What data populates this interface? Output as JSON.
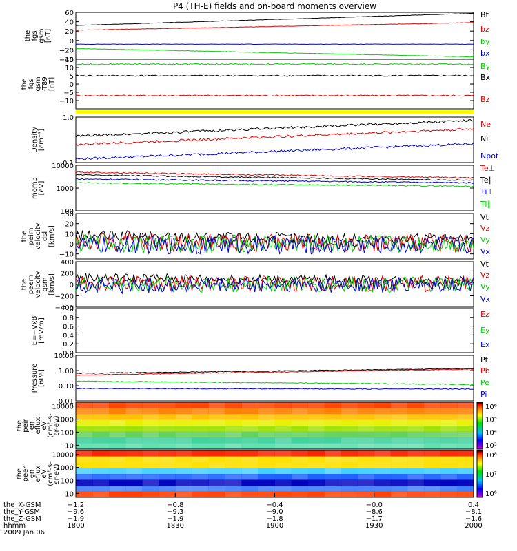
{
  "title": "P4 (TH-E) fields and on-board moments overview",
  "colors": {
    "black": "#000000",
    "red": "#e00000",
    "green": "#00d000",
    "blue": "#0000d0",
    "yellow": "#ffff00"
  },
  "chart_data": {
    "type": "line",
    "panels": [
      {
        "ylabel": [
          "the",
          "fgs",
          "gsm",
          "[nT]"
        ],
        "ylim": [
          -40,
          60
        ],
        "log": false,
        "ticks": [
          "60",
          "40",
          "20",
          "0",
          "−20",
          "−40"
        ],
        "tickvals": [
          60,
          40,
          20,
          0,
          -20,
          -40
        ],
        "series": [
          {
            "name": "Bt",
            "color": "black",
            "start": 32,
            "end": 58
          },
          {
            "name": "bz",
            "color": "red",
            "start": 22,
            "end": 38
          },
          {
            "name": "by",
            "color": "green",
            "start": -17,
            "end": -35
          },
          {
            "name": "bx",
            "color": "blue",
            "start": -8,
            "end": -8
          }
        ]
      },
      {
        "ylabel": [
          "the",
          "fgs",
          "gsm",
          "-T89"
        ],
        "ylabel2": "[nT]",
        "ylim": [
          -15,
          15
        ],
        "log": false,
        "ticks": [
          "15",
          "10",
          "5",
          "0",
          "−5",
          "−10"
        ],
        "tickvals": [
          15,
          10,
          5,
          0,
          -5,
          -10
        ],
        "series": [
          {
            "name": "By",
            "color": "green",
            "start": 12,
            "end": 12
          },
          {
            "name": "Bx",
            "color": "black",
            "start": 5,
            "end": 5
          },
          {
            "name": "Bz",
            "color": "red",
            "start": -7,
            "end": -7
          }
        ]
      },
      {
        "ylabel": [
          "Density",
          "[cm⁻³]"
        ],
        "ylim": [
          0.1,
          1.0
        ],
        "log": true,
        "ticks": [
          "1.0",
          "0.1"
        ],
        "tickvals": [
          1.0,
          0.1
        ],
        "series": [
          {
            "name": "Ne",
            "color": "red",
            "start": 0.25,
            "end": 0.55
          },
          {
            "name": "Ni",
            "color": "black",
            "start": 0.38,
            "end": 0.85
          },
          {
            "name": "Npot",
            "color": "blue",
            "start": 0.12,
            "end": 0.26
          }
        ]
      },
      {
        "ylabel": [
          "mom3",
          "[eV]"
        ],
        "ylim": [
          100,
          10000
        ],
        "log": true,
        "ticks": [
          "10000",
          "1000",
          "100"
        ],
        "tickvals": [
          10000,
          1000,
          100
        ],
        "series": [
          {
            "name": "Te⊥",
            "color": "red",
            "start": 5000,
            "end": 2800
          },
          {
            "name": "Te∥",
            "color": "black",
            "start": 3800,
            "end": 2200
          },
          {
            "name": "Ti⊥",
            "color": "blue",
            "start": 2500,
            "end": 1700
          },
          {
            "name": "Ti∥",
            "color": "green",
            "start": 1700,
            "end": 1200
          }
        ]
      },
      {
        "ylabel": [
          "the",
          "peim",
          "velocity",
          "dsl",
          "[km/s]"
        ],
        "ylim": [
          -15,
          30
        ],
        "log": false,
        "ticks": [
          "30",
          "20",
          "10",
          "0",
          "−10"
        ],
        "tickvals": [
          30,
          20,
          10,
          0,
          -10
        ],
        "series": [
          {
            "name": "Vt",
            "color": "black",
            "start": 8,
            "end": 4
          },
          {
            "name": "Vz",
            "color": "red",
            "start": 2,
            "end": 1
          },
          {
            "name": "Vy",
            "color": "green",
            "start": 0,
            "end": 0
          },
          {
            "name": "Vx",
            "color": "blue",
            "start": -1,
            "end": -1
          }
        ]
      },
      {
        "ylabel": [
          "the",
          "peem",
          "velocity",
          "gsm",
          "[km/s]"
        ],
        "ylim": [
          -400,
          400
        ],
        "log": false,
        "ticks": [
          "400",
          "200",
          "0",
          "−200",
          "−400"
        ],
        "tickvals": [
          400,
          200,
          0,
          -200,
          -400
        ],
        "series": [
          {
            "name": "Vt",
            "color": "black",
            "start": 120,
            "end": 60
          },
          {
            "name": "Vz",
            "color": "red",
            "start": 20,
            "end": 10
          },
          {
            "name": "Vy",
            "color": "green",
            "start": 0,
            "end": 0
          },
          {
            "name": "Vx",
            "color": "blue",
            "start": -20,
            "end": -10
          }
        ]
      },
      {
        "ylabel": [
          "E=−VxB",
          "[mV/m]"
        ],
        "ylim": [
          0,
          1.0
        ],
        "log": false,
        "ticks": [
          "1.0",
          "0.8",
          "0.6",
          "0.4",
          "0.2",
          "0.0"
        ],
        "tickvals": [
          1.0,
          0.8,
          0.6,
          0.4,
          0.2,
          0.0
        ],
        "series": [
          {
            "name": "Ez",
            "color": "red"
          },
          {
            "name": "Ey",
            "color": "green"
          },
          {
            "name": "Ex",
            "color": "blue"
          }
        ]
      },
      {
        "ylabel": [
          "Pressure",
          "[nPa]"
        ],
        "ylim": [
          0.01,
          10
        ],
        "log": true,
        "ticks": [
          "10.00",
          "1.00",
          "0.10",
          "0.01"
        ],
        "tickvals": [
          10,
          1,
          0.1,
          0.01
        ],
        "series": [
          {
            "name": "Pt",
            "color": "black",
            "start": 0.65,
            "end": 1.35
          },
          {
            "name": "Pb",
            "color": "red",
            "start": 0.5,
            "end": 1.25
          },
          {
            "name": "Pe",
            "color": "green",
            "start": 0.2,
            "end": 0.12
          },
          {
            "name": "Pi",
            "color": "blue",
            "start": 0.065,
            "end": 0.06
          }
        ]
      }
    ],
    "spectrograms": [
      {
        "ylabel": [
          "the",
          "peir",
          "en",
          "eflux",
          "eV",
          "(cm²-s-",
          "sr-eV)"
        ],
        "ylim": [
          5,
          20000
        ],
        "log": true,
        "ticks": [
          "10000",
          "1000",
          "100",
          "10"
        ],
        "tickvals": [
          10000,
          1000,
          100,
          10
        ],
        "colorbar": [
          "10⁶",
          "10⁵",
          "10⁴",
          "10³"
        ],
        "colorbar_vals": [
          1000000,
          100000,
          10000,
          1000
        ]
      },
      {
        "ylabel": [
          "the",
          "peer",
          "en",
          "eflux",
          "eV",
          "(cm²-s-",
          "sr-eV)"
        ],
        "ylim": [
          5,
          20000
        ],
        "log": true,
        "ticks": [
          "10000",
          "1000",
          "100",
          "10"
        ],
        "tickvals": [
          10000,
          1000,
          100,
          10
        ],
        "colorbar": [
          "10⁸",
          "10⁷",
          "10⁶"
        ],
        "colorbar_vals": [
          100000000,
          10000000,
          1000000
        ]
      }
    ],
    "xaxis": {
      "rows": [
        {
          "label": "the_X-GSM",
          "values": [
            "−1.2",
            "−0.8",
            "−0.4",
            "−0.0",
            "0.4"
          ]
        },
        {
          "label": "the_Y-GSM",
          "values": [
            "−9.6",
            "−9.3",
            "−9.0",
            "−8.6",
            "−8.1"
          ]
        },
        {
          "label": "the_Z-GSM",
          "values": [
            "−1.9",
            "−1.9",
            "−1.8",
            "−1.7",
            "−1.6"
          ]
        },
        {
          "label": "hhmm",
          "values": [
            "1800",
            "1830",
            "1900",
            "1930",
            "2000"
          ]
        }
      ],
      "date": "2009 Jan 06"
    }
  }
}
